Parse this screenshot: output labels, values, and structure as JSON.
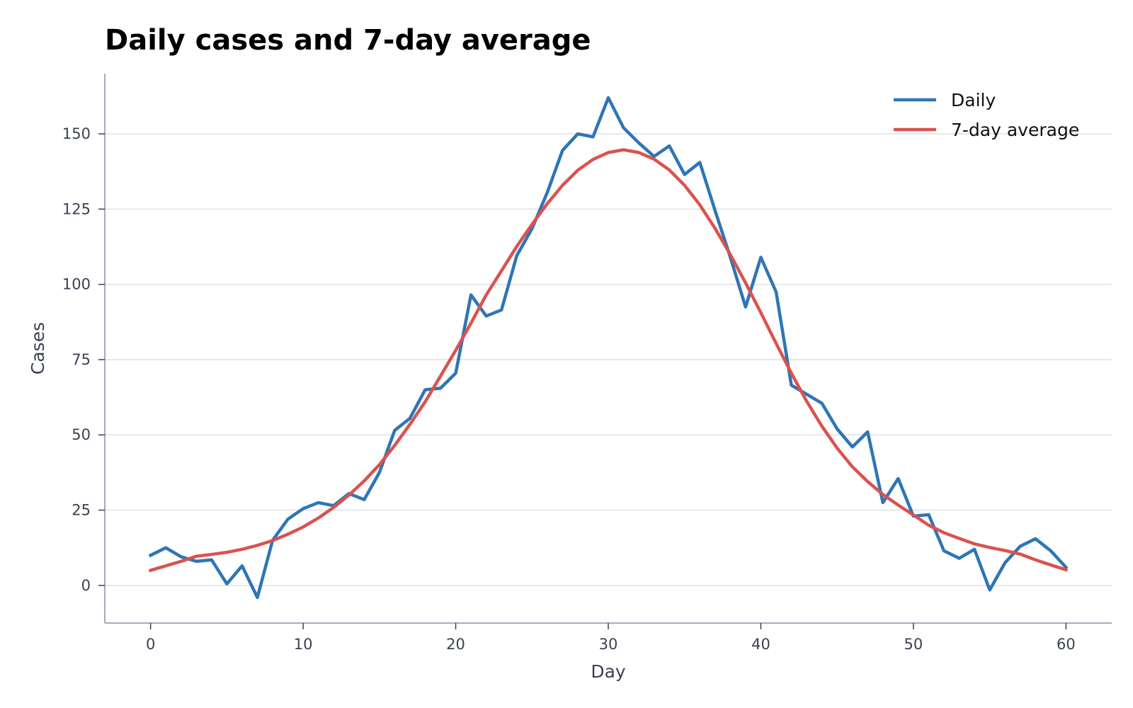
{
  "chart_data": {
    "type": "line",
    "title": "Daily cases and 7-day average",
    "xlabel": "Day",
    "ylabel": "Cases",
    "xlim": [
      -3,
      63
    ],
    "ylim": [
      -12.5,
      170
    ],
    "x_ticks": [
      0,
      10,
      20,
      30,
      40,
      50,
      60
    ],
    "y_ticks": [
      0,
      25,
      50,
      75,
      100,
      125,
      150
    ],
    "grid": "horizontal",
    "legend_position": "top-right",
    "x": [
      0,
      1,
      2,
      3,
      4,
      5,
      6,
      7,
      8,
      9,
      10,
      11,
      12,
      13,
      14,
      15,
      16,
      17,
      18,
      19,
      20,
      21,
      22,
      23,
      24,
      25,
      26,
      27,
      28,
      29,
      30,
      31,
      32,
      33,
      34,
      35,
      36,
      37,
      38,
      39,
      40,
      41,
      42,
      43,
      44,
      45,
      46,
      47,
      48,
      49,
      50,
      51,
      52,
      53,
      54,
      55,
      56,
      57,
      58,
      59,
      60
    ],
    "series": [
      {
        "name": "Daily",
        "color": "#2e75b6",
        "values": [
          10.0,
          12.5,
          9.5,
          8.0,
          8.5,
          0.5,
          6.5,
          -4.0,
          15.0,
          22.0,
          25.5,
          27.5,
          26.5,
          30.5,
          28.5,
          37.5,
          51.5,
          55.5,
          65.0,
          65.5,
          70.5,
          96.5,
          89.5,
          91.5,
          109.5,
          118.5,
          130.5,
          144.5,
          150.0,
          149.0,
          162.0,
          152.0,
          147.0,
          142.5,
          146.0,
          136.5,
          140.5,
          124.5,
          109.0,
          92.5,
          109.0,
          97.5,
          66.5,
          63.5,
          60.5,
          52.0,
          46.0,
          51.0,
          27.5,
          35.5,
          23.0,
          23.5,
          11.5,
          9.0,
          12.0,
          -1.5,
          7.5,
          13.0,
          15.5,
          11.5,
          6.0
        ]
      },
      {
        "name": "7-day average",
        "color": "#d9534f",
        "values": [
          5.0,
          6.5,
          8.0,
          9.7,
          10.3,
          11.0,
          12.0,
          13.3,
          14.9,
          17.0,
          19.4,
          22.4,
          25.9,
          30.0,
          34.7,
          40.1,
          46.5,
          53.5,
          61.0,
          69.5,
          78.1,
          87.1,
          96.5,
          104.5,
          112.6,
          119.9,
          126.8,
          132.9,
          137.9,
          141.5,
          143.8,
          144.7,
          143.8,
          141.6,
          138.0,
          132.9,
          126.4,
          118.6,
          109.9,
          100.5,
          90.6,
          80.4,
          70.5,
          61.2,
          52.9,
          45.6,
          39.4,
          34.5,
          30.2,
          26.7,
          23.4,
          20.0,
          17.5,
          15.6,
          13.8,
          12.6,
          11.6,
          10.4,
          8.5,
          6.8,
          5.2
        ]
      }
    ]
  }
}
